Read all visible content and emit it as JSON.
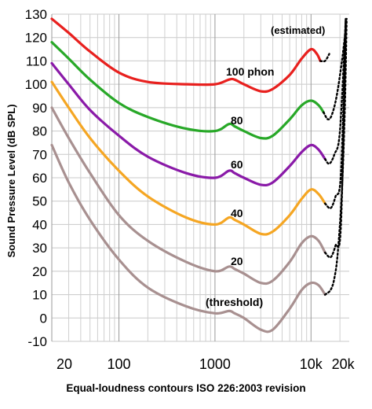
{
  "chart_data": {
    "type": "line",
    "caption": "Equal-loudness contours ISO 226:2003 revision",
    "ylabel": "Sound Pressure Level (dB SPL)",
    "xscale": "log",
    "xlim": [
      20,
      25000
    ],
    "ylim": [
      -10,
      130
    ],
    "y_ticks": [
      "-10",
      "0",
      "10",
      "20",
      "30",
      "40",
      "50",
      "60",
      "70",
      "80",
      "90",
      "100",
      "110",
      "120",
      "130"
    ],
    "x_ticks": [
      {
        "value": 20,
        "label": "20"
      },
      {
        "value": 100,
        "label": "100"
      },
      {
        "value": 1000,
        "label": "1000"
      },
      {
        "value": 10000,
        "label": "10k"
      },
      {
        "value": 20000,
        "label": "20k"
      }
    ],
    "grid": true,
    "annotation": "(estimated)",
    "series": [
      {
        "name": "100 phon",
        "color": "#e8201e",
        "x": [
          20,
          30,
          50,
          100,
          200,
          500,
          1000,
          1400,
          1600,
          2000,
          3000,
          4000,
          6000,
          8000,
          10000,
          11500,
          12500
        ],
        "y": [
          128,
          122,
          114,
          105,
          101,
          100,
          100,
          102,
          102,
          100,
          97,
          98,
          104,
          111,
          115,
          113,
          110
        ]
      },
      {
        "name": "80",
        "color": "#28a828",
        "x": [
          20,
          30,
          50,
          100,
          200,
          500,
          1000,
          1400,
          1600,
          2000,
          3000,
          4000,
          6000,
          8000,
          10000,
          12000,
          13500
        ],
        "y": [
          118,
          111,
          102,
          92,
          86,
          81,
          80,
          83,
          82,
          80,
          77,
          78,
          85,
          91,
          93,
          91,
          88
        ]
      },
      {
        "name": "60",
        "color": "#8a1aa8",
        "x": [
          20,
          30,
          50,
          100,
          200,
          500,
          1000,
          1400,
          1600,
          2000,
          3000,
          4000,
          6000,
          8000,
          10000,
          12000,
          14000
        ],
        "y": [
          109,
          100,
          89,
          78,
          69,
          62,
          60,
          63,
          62,
          60,
          57,
          58,
          65,
          71,
          74,
          72,
          68
        ]
      },
      {
        "name": "40",
        "color": "#f5a623",
        "x": [
          20,
          30,
          50,
          100,
          200,
          500,
          1000,
          1400,
          1600,
          2000,
          3000,
          4000,
          6000,
          8000,
          10000,
          12000,
          14000
        ],
        "y": [
          101,
          90,
          77,
          63,
          52,
          43,
          40,
          43,
          42,
          40,
          36,
          37,
          44,
          51,
          55,
          53,
          49
        ]
      },
      {
        "name": "20",
        "color": "#a89090",
        "x": [
          20,
          30,
          50,
          100,
          200,
          500,
          1000,
          1400,
          1600,
          2000,
          3000,
          4000,
          6000,
          8000,
          10000,
          12000,
          14000
        ],
        "y": [
          90,
          77,
          62,
          44,
          33,
          24,
          20,
          22,
          21,
          19,
          15,
          16,
          24,
          32,
          35,
          33,
          28
        ]
      },
      {
        "name": "(threshold)",
        "color": "#a89090",
        "x": [
          20,
          30,
          50,
          100,
          200,
          500,
          1000,
          1400,
          1600,
          2000,
          3000,
          4000,
          6000,
          8000,
          10000,
          12000,
          14000
        ],
        "y": [
          74,
          58,
          42,
          25,
          13,
          5,
          2,
          3,
          2,
          0,
          -5,
          -5,
          4,
          12,
          15,
          14,
          10
        ]
      }
    ],
    "estimated_extensions": [
      {
        "x": [
          12500,
          14000,
          15500
        ],
        "y": [
          110,
          110,
          113
        ]
      },
      {
        "x": [
          13500,
          15000,
          16500,
          18500,
          21000,
          23000
        ],
        "y": [
          88,
          85,
          87,
          95,
          110,
          124
        ]
      },
      {
        "x": [
          14000,
          15500,
          17500,
          20000,
          23000
        ],
        "y": [
          68,
          66,
          70,
          80,
          128
        ]
      },
      {
        "x": [
          14000,
          16000,
          18000,
          20500,
          23000
        ],
        "y": [
          49,
          47,
          52,
          62,
          128
        ]
      },
      {
        "x": [
          14000,
          16000,
          18000,
          20500,
          23000
        ],
        "y": [
          28,
          26,
          31,
          40,
          128
        ]
      },
      {
        "x": [
          14000,
          16000,
          17500,
          19000,
          21000,
          22500,
          23500
        ],
        "y": [
          10,
          12,
          17,
          28,
          55,
          90,
          128
        ]
      }
    ]
  },
  "labels": {
    "l100": "100 phon",
    "l80": "80",
    "l60": "60",
    "l40": "40",
    "l20": "20",
    "lthr": "(threshold)",
    "estimated": "(estimated)"
  }
}
